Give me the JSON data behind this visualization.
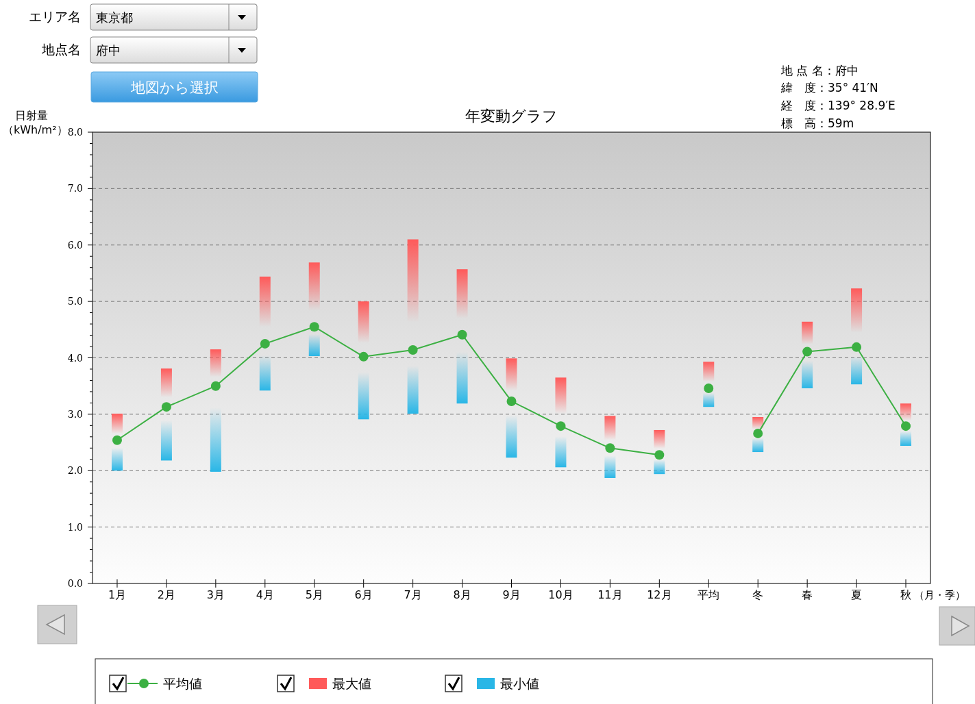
{
  "chart_data": {
    "type": "line",
    "title": "年変動グラフ",
    "xlabel": "（月・季）",
    "ylabel": "日射量（kWh/m²）",
    "categories": [
      "1月",
      "2月",
      "3月",
      "4月",
      "5月",
      "6月",
      "7月",
      "8月",
      "9月",
      "10月",
      "11月",
      "12月",
      "平均",
      "冬",
      "春",
      "夏",
      "秋"
    ],
    "series": [
      {
        "name": "最大値",
        "type": "bar",
        "color": "#ff5a5a",
        "base": [
          2.54,
          3.13,
          3.5,
          4.25,
          4.55,
          4.02,
          4.14,
          4.41,
          3.23,
          2.79,
          2.4,
          2.28,
          3.46,
          2.66,
          4.11,
          4.19,
          2.79
        ],
        "values": [
          0.47,
          0.68,
          0.65,
          1.19,
          1.14,
          0.98,
          1.96,
          1.16,
          0.76,
          0.86,
          0.57,
          0.44,
          0.47,
          0.29,
          0.53,
          1.04,
          0.4
        ]
      },
      {
        "name": "最小値",
        "type": "bar",
        "color": "#29b6e6",
        "base": [
          2.54,
          3.13,
          3.5,
          4.25,
          4.55,
          4.02,
          4.14,
          4.41,
          3.23,
          2.79,
          2.4,
          2.28,
          3.46,
          2.66,
          4.11,
          4.19,
          2.79
        ],
        "values": [
          -0.54,
          -0.95,
          -1.52,
          -0.83,
          -0.52,
          -1.11,
          -1.13,
          -1.22,
          -1.0,
          -0.73,
          -0.53,
          -0.34,
          -0.33,
          -0.33,
          -0.65,
          -0.66,
          -0.35
        ]
      },
      {
        "name": "平均値",
        "color": "#3cb043",
        "values": [
          2.54,
          3.13,
          3.5,
          4.25,
          4.55,
          4.02,
          4.14,
          4.41,
          3.23,
          2.79,
          2.4,
          2.28,
          null,
          null,
          null,
          null,
          null
        ]
      },
      {
        "color": "#3cb043",
        "values": [
          null,
          null,
          null,
          null,
          null,
          null,
          null,
          null,
          null,
          null,
          null,
          null,
          3.46,
          null,
          null,
          null,
          null
        ]
      },
      {
        "color": "#3cb043",
        "values": [
          null,
          null,
          null,
          null,
          null,
          null,
          null,
          null,
          null,
          null,
          null,
          null,
          null,
          2.66,
          4.11,
          4.19,
          2.79
        ]
      }
    ],
    "ylim": [
      0,
      8
    ],
    "yticks": [
      {
        "value": 0,
        "label": "0.0"
      },
      {
        "value": 1,
        "label": "1.0"
      },
      {
        "value": 2,
        "label": "2.0"
      },
      {
        "value": 3,
        "label": "3.0"
      },
      {
        "value": 4,
        "label": "4.0"
      },
      {
        "value": 5,
        "label": "5.0"
      },
      {
        "value": 6,
        "label": "6.0"
      },
      {
        "value": 7,
        "label": "7.0"
      },
      {
        "value": 8,
        "label": "8.0"
      }
    ],
    "grid": "y",
    "marker": "circle",
    "legend": "bottom",
    "annotations": [
      "エリア名",
      "東京都",
      "地点名",
      "府中",
      "地図から選択",
      "地 点 名：府中",
      "緯　度：35° 41′N",
      "経　度：139° 28.9′E",
      "標　高：59m"
    ]
  }
}
